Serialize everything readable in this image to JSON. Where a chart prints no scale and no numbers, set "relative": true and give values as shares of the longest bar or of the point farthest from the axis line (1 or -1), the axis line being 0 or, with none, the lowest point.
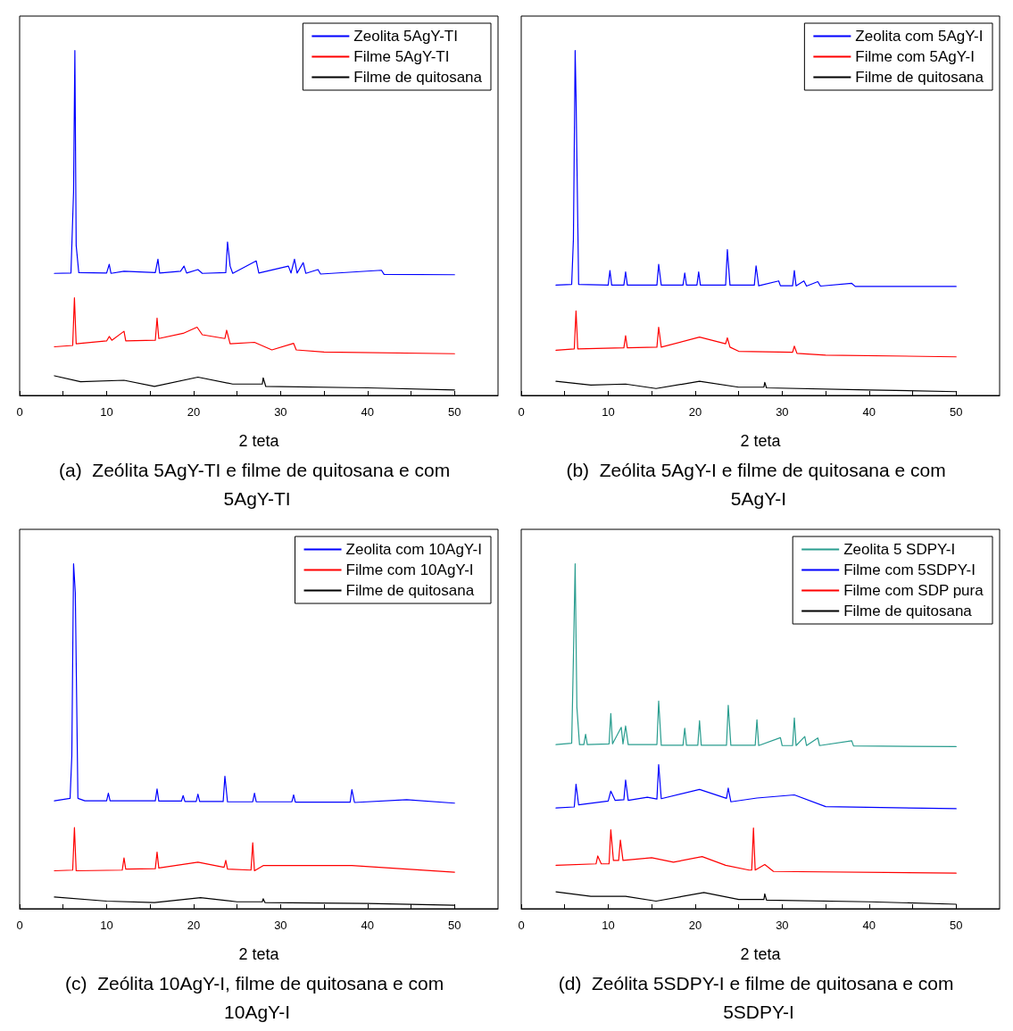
{
  "chart_data": [
    {
      "type": "line",
      "relative": true,
      "title": "(a)  Zeólita 5AgY-TI e filme de quitosana e com 5AgY-TI",
      "xlabel": "2 teta",
      "xlim": [
        0,
        55
      ],
      "xticks": [
        0,
        {
          "value": 5,
          "label": null
        },
        10,
        {
          "value": 15,
          "label": null
        },
        20,
        {
          "value": 25,
          "label": null
        },
        30,
        {
          "value": 35,
          "label": null
        },
        40,
        {
          "value": 45,
          "label": null
        },
        50
      ],
      "tick_labels": "x",
      "legend": "top right",
      "series": [
        {
          "name": "Zeolita 5AgY-TI",
          "color": "#0000ff",
          "x": [
            4,
            5.9,
            6.2,
            6.35,
            6.5,
            6.8,
            10,
            10.3,
            10.5,
            12,
            15.6,
            15.9,
            16.1,
            18.5,
            18.9,
            19.2,
            20.5,
            21,
            23.7,
            23.9,
            24.2,
            24.5,
            27.2,
            27.5,
            30.9,
            31.2,
            31.6,
            31.9,
            32.6,
            32.9,
            34.3,
            34.6,
            41.6,
            41.9,
            50
          ],
          "values": [
            0.354,
            0.355,
            0.59,
            1,
            0.435,
            0.356,
            0.355,
            0.38,
            0.354,
            0.36,
            0.356,
            0.395,
            0.355,
            0.36,
            0.375,
            0.355,
            0.365,
            0.354,
            0.356,
            0.445,
            0.375,
            0.354,
            0.39,
            0.355,
            0.375,
            0.355,
            0.395,
            0.355,
            0.385,
            0.354,
            0.365,
            0.352,
            0.363,
            0.351,
            0.35
          ]
        },
        {
          "name": "Filme 5AgY-TI",
          "color": "#ff0000",
          "x": [
            4,
            6.1,
            6.3,
            6.5,
            10,
            10.3,
            10.6,
            12,
            12.2,
            15.6,
            15.8,
            16,
            18.8,
            20.4,
            21,
            23.6,
            23.8,
            24.2,
            27,
            29,
            31.5,
            31.8,
            35,
            50
          ],
          "values": [
            0.141,
            0.145,
            0.283,
            0.15,
            0.158,
            0.171,
            0.16,
            0.186,
            0.158,
            0.16,
            0.224,
            0.165,
            0.18,
            0.198,
            0.176,
            0.165,
            0.189,
            0.15,
            0.154,
            0.132,
            0.151,
            0.132,
            0.126,
            0.121
          ]
        },
        {
          "name": "Filme de quitosana",
          "color": "#000000",
          "x": [
            4,
            7,
            12,
            15.5,
            20.5,
            24.5,
            27.9,
            28,
            28.3,
            40,
            50
          ],
          "values": [
            0.057,
            0.04,
            0.044,
            0.026,
            0.053,
            0.033,
            0.033,
            0.051,
            0.026,
            0.022,
            0.016
          ]
        }
      ]
    },
    {
      "type": "line",
      "relative": true,
      "title": "(b)  Zeólita 5AgY-I e filme de quitosana e com 5AgY-I",
      "xlabel": "2 teta",
      "xlim": [
        0,
        55
      ],
      "xticks": [
        0,
        {
          "value": 5,
          "label": null
        },
        10,
        {
          "value": 15,
          "label": null
        },
        20,
        {
          "value": 25,
          "label": null
        },
        30,
        {
          "value": 35,
          "label": null
        },
        40,
        {
          "value": 45,
          "label": null
        },
        50
      ],
      "tick_labels": "x",
      "legend": "top right",
      "series": [
        {
          "name": "Zeolita com 5AgY-I",
          "color": "#0000ff",
          "x": [
            4,
            5.8,
            6.0,
            6.2,
            6.3,
            6.6,
            10,
            10.2,
            10.4,
            11.8,
            12,
            12.2,
            15.6,
            15.8,
            16.1,
            18.6,
            18.8,
            19,
            20.2,
            20.4,
            20.6,
            23.5,
            23.7,
            24,
            26.8,
            27,
            27.3,
            29.6,
            29.8,
            31.2,
            31.4,
            31.6,
            32.5,
            32.8,
            34.1,
            34.4,
            38,
            38.4,
            50
          ],
          "values": [
            0.32,
            0.322,
            0.453,
            1,
            0.869,
            0.322,
            0.32,
            0.362,
            0.32,
            0.32,
            0.358,
            0.32,
            0.32,
            0.38,
            0.32,
            0.32,
            0.355,
            0.32,
            0.32,
            0.358,
            0.32,
            0.32,
            0.423,
            0.32,
            0.32,
            0.376,
            0.318,
            0.332,
            0.318,
            0.318,
            0.362,
            0.318,
            0.332,
            0.317,
            0.33,
            0.317,
            0.325,
            0.316,
            0.316
          ]
        },
        {
          "name": "Filme com 5AgY-I",
          "color": "#ff0000",
          "x": [
            4,
            6.1,
            6.3,
            6.5,
            11.8,
            12,
            12.2,
            15.6,
            15.8,
            16.1,
            20.5,
            23.5,
            23.7,
            24,
            25,
            31.2,
            31.4,
            31.7,
            35,
            50
          ],
          "values": [
            0.131,
            0.135,
            0.245,
            0.135,
            0.138,
            0.173,
            0.138,
            0.14,
            0.198,
            0.14,
            0.169,
            0.15,
            0.167,
            0.14,
            0.128,
            0.125,
            0.143,
            0.122,
            0.117,
            0.112
          ]
        },
        {
          "name": "Filme de quitosana",
          "color": "#000000",
          "x": [
            4,
            8,
            12,
            15.5,
            20.5,
            25,
            27.9,
            28,
            28.2,
            40,
            50
          ],
          "values": [
            0.041,
            0.03,
            0.033,
            0.02,
            0.041,
            0.024,
            0.024,
            0.038,
            0.022,
            0.016,
            0.011
          ]
        }
      ]
    },
    {
      "type": "line",
      "relative": true,
      "title": "(c)  Zeólita 10AgY-I, filme de quitosana e com 10AgY-I",
      "xlabel": "2 teta",
      "xlim": [
        0,
        55
      ],
      "xticks": [
        0,
        {
          "value": 5,
          "label": null
        },
        10,
        {
          "value": 15,
          "label": null
        },
        20,
        {
          "value": 25,
          "label": null
        },
        30,
        {
          "value": 35,
          "label": null
        },
        40,
        {
          "value": 45,
          "label": null
        },
        50
      ],
      "tick_labels": "x",
      "legend": "top right",
      "series": [
        {
          "name": "Zeolita com 10AgY-I",
          "color": "#0000ff",
          "x": [
            4,
            5.8,
            6.0,
            6.2,
            6.4,
            6.7,
            7.5,
            10,
            10.2,
            10.4,
            15.6,
            15.8,
            16,
            18.6,
            18.8,
            19,
            20.3,
            20.5,
            20.7,
            23.4,
            23.6,
            23.9,
            26.8,
            27,
            27.2,
            31.3,
            31.5,
            31.7,
            38,
            38.2,
            38.5,
            44.5,
            50
          ],
          "values": [
            0.313,
            0.32,
            0.443,
            1,
            0.917,
            0.32,
            0.313,
            0.313,
            0.335,
            0.313,
            0.313,
            0.347,
            0.312,
            0.312,
            0.328,
            0.311,
            0.311,
            0.332,
            0.311,
            0.311,
            0.384,
            0.31,
            0.31,
            0.335,
            0.31,
            0.31,
            0.33,
            0.309,
            0.309,
            0.345,
            0.308,
            0.316,
            0.306
          ]
        },
        {
          "name": "Filme com 10AgY-I",
          "color": "#ff0000",
          "x": [
            4,
            6.1,
            6.3,
            6.5,
            11.8,
            12,
            12.2,
            15.6,
            15.8,
            16,
            20.5,
            23.5,
            23.7,
            23.9,
            26.6,
            26.8,
            27,
            28,
            31.5,
            38.2,
            50
          ],
          "values": [
            0.11,
            0.112,
            0.235,
            0.11,
            0.112,
            0.147,
            0.115,
            0.116,
            0.164,
            0.118,
            0.135,
            0.12,
            0.14,
            0.115,
            0.112,
            0.191,
            0.11,
            0.125,
            0.125,
            0.125,
            0.106
          ]
        },
        {
          "name": "Filme de quitosana",
          "color": "#000000",
          "x": [
            4,
            10,
            15.5,
            20.8,
            25,
            27.9,
            28,
            28.2,
            40,
            50
          ],
          "values": [
            0.034,
            0.022,
            0.018,
            0.032,
            0.02,
            0.02,
            0.029,
            0.018,
            0.015,
            0.01
          ]
        }
      ]
    },
    {
      "type": "line",
      "relative": true,
      "title": "(d)  Zeólita 5SDPY-I e filme de quitosana e com 5SDPY-I",
      "xlabel": "2 teta",
      "xlim": [
        0,
        55
      ],
      "xticks": [
        0,
        {
          "value": 5,
          "label": null
        },
        10,
        {
          "value": 15,
          "label": null
        },
        20,
        {
          "value": 25,
          "label": null
        },
        30,
        {
          "value": 35,
          "label": null
        },
        40,
        {
          "value": 45,
          "label": null
        },
        50
      ],
      "tick_labels": "x",
      "legend": "top right",
      "series": [
        {
          "name": "Zeolita 5 SDPY-I",
          "color": "#2a9d8f",
          "x": [
            4,
            5.8,
            6.0,
            6.2,
            6.4,
            6.7,
            7.2,
            7.4,
            7.6,
            10.1,
            10.3,
            10.5,
            11.5,
            11.7,
            12.0,
            12.3,
            15.6,
            15.8,
            16.1,
            18.6,
            18.8,
            19,
            20.3,
            20.5,
            20.7,
            23.6,
            23.8,
            24.1,
            26.9,
            27.1,
            27.3,
            29.8,
            30,
            31.2,
            31.4,
            31.6,
            32.6,
            32.8,
            34.1,
            34.3,
            38,
            38.2,
            50
          ],
          "values": [
            0.476,
            0.48,
            0.728,
            1,
            0.584,
            0.476,
            0.476,
            0.506,
            0.476,
            0.478,
            0.566,
            0.478,
            0.526,
            0.478,
            0.53,
            0.476,
            0.476,
            0.602,
            0.474,
            0.474,
            0.523,
            0.474,
            0.474,
            0.545,
            0.474,
            0.474,
            0.59,
            0.474,
            0.474,
            0.548,
            0.473,
            0.496,
            0.473,
            0.473,
            0.553,
            0.473,
            0.499,
            0.473,
            0.495,
            0.473,
            0.487,
            0.472,
            0.47
          ]
        },
        {
          "name": "Filme com 5SDPY-I",
          "color": "#0000ff",
          "x": [
            4,
            6.1,
            6.3,
            6.6,
            10,
            10.3,
            10.8,
            11.8,
            12.0,
            12.3,
            14.5,
            15.6,
            15.8,
            16.1,
            20.5,
            23.6,
            23.8,
            24.1,
            27.1,
            31.4,
            35,
            50
          ],
          "values": [
            0.292,
            0.295,
            0.361,
            0.301,
            0.312,
            0.341,
            0.314,
            0.316,
            0.373,
            0.314,
            0.323,
            0.318,
            0.418,
            0.319,
            0.346,
            0.32,
            0.35,
            0.31,
            0.321,
            0.33,
            0.296,
            0.29
          ]
        },
        {
          "name": "Filme com SDP pura",
          "color": "#ff0000",
          "x": [
            4,
            8.6,
            8.8,
            9.2,
            10.1,
            10.3,
            10.6,
            11.2,
            11.4,
            11.7,
            15,
            17.5,
            20.8,
            23.5,
            26.2,
            26.5,
            26.7,
            26.9,
            28,
            29,
            50
          ],
          "values": [
            0.126,
            0.13,
            0.153,
            0.13,
            0.13,
            0.229,
            0.14,
            0.14,
            0.199,
            0.14,
            0.148,
            0.135,
            0.151,
            0.126,
            0.112,
            0.112,
            0.234,
            0.112,
            0.128,
            0.108,
            0.103
          ]
        },
        {
          "name": "Filme de quitosana",
          "color": "#000000",
          "x": [
            4,
            8,
            12,
            15.5,
            21,
            25,
            27.9,
            28,
            28.2,
            40,
            50
          ],
          "values": [
            0.049,
            0.036,
            0.036,
            0.022,
            0.047,
            0.027,
            0.027,
            0.043,
            0.025,
            0.02,
            0.013
          ]
        }
      ]
    }
  ]
}
